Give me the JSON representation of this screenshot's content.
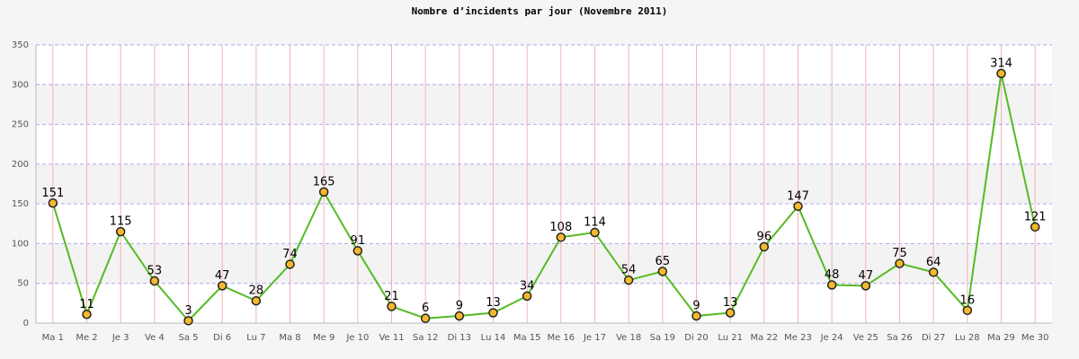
{
  "chart_data": {
    "type": "line",
    "title": "Nombre d’incidents par jour (Novembre 2011)",
    "categories": [
      "Ma 1",
      "Me 2",
      "Je 3",
      "Ve 4",
      "Sa 5",
      "Di 6",
      "Lu 7",
      "Ma 8",
      "Me 9",
      "Je 10",
      "Ve 11",
      "Sa 12",
      "Di 13",
      "Lu 14",
      "Ma 15",
      "Me 16",
      "Je 17",
      "Ve 18",
      "Sa 19",
      "Di 20",
      "Lu 21",
      "Ma 22",
      "Me 23",
      "Je 24",
      "Ve 25",
      "Sa 26",
      "Di 27",
      "Lu 28",
      "Ma 29",
      "Me 30"
    ],
    "series": [
      {
        "color": "#55bb22",
        "marker_color": "#f5b82e",
        "values": [
          151,
          11,
          115,
          53,
          3,
          47,
          28,
          74,
          165,
          91,
          21,
          6,
          9,
          13,
          34,
          108,
          114,
          54,
          65,
          9,
          13,
          96,
          147,
          48,
          47,
          75,
          64,
          16,
          314,
          121
        ]
      }
    ],
    "ylim": [
      0,
      350
    ],
    "yticks": [
      0,
      50,
      100,
      150,
      200,
      250,
      300,
      350
    ],
    "grid": true
  }
}
